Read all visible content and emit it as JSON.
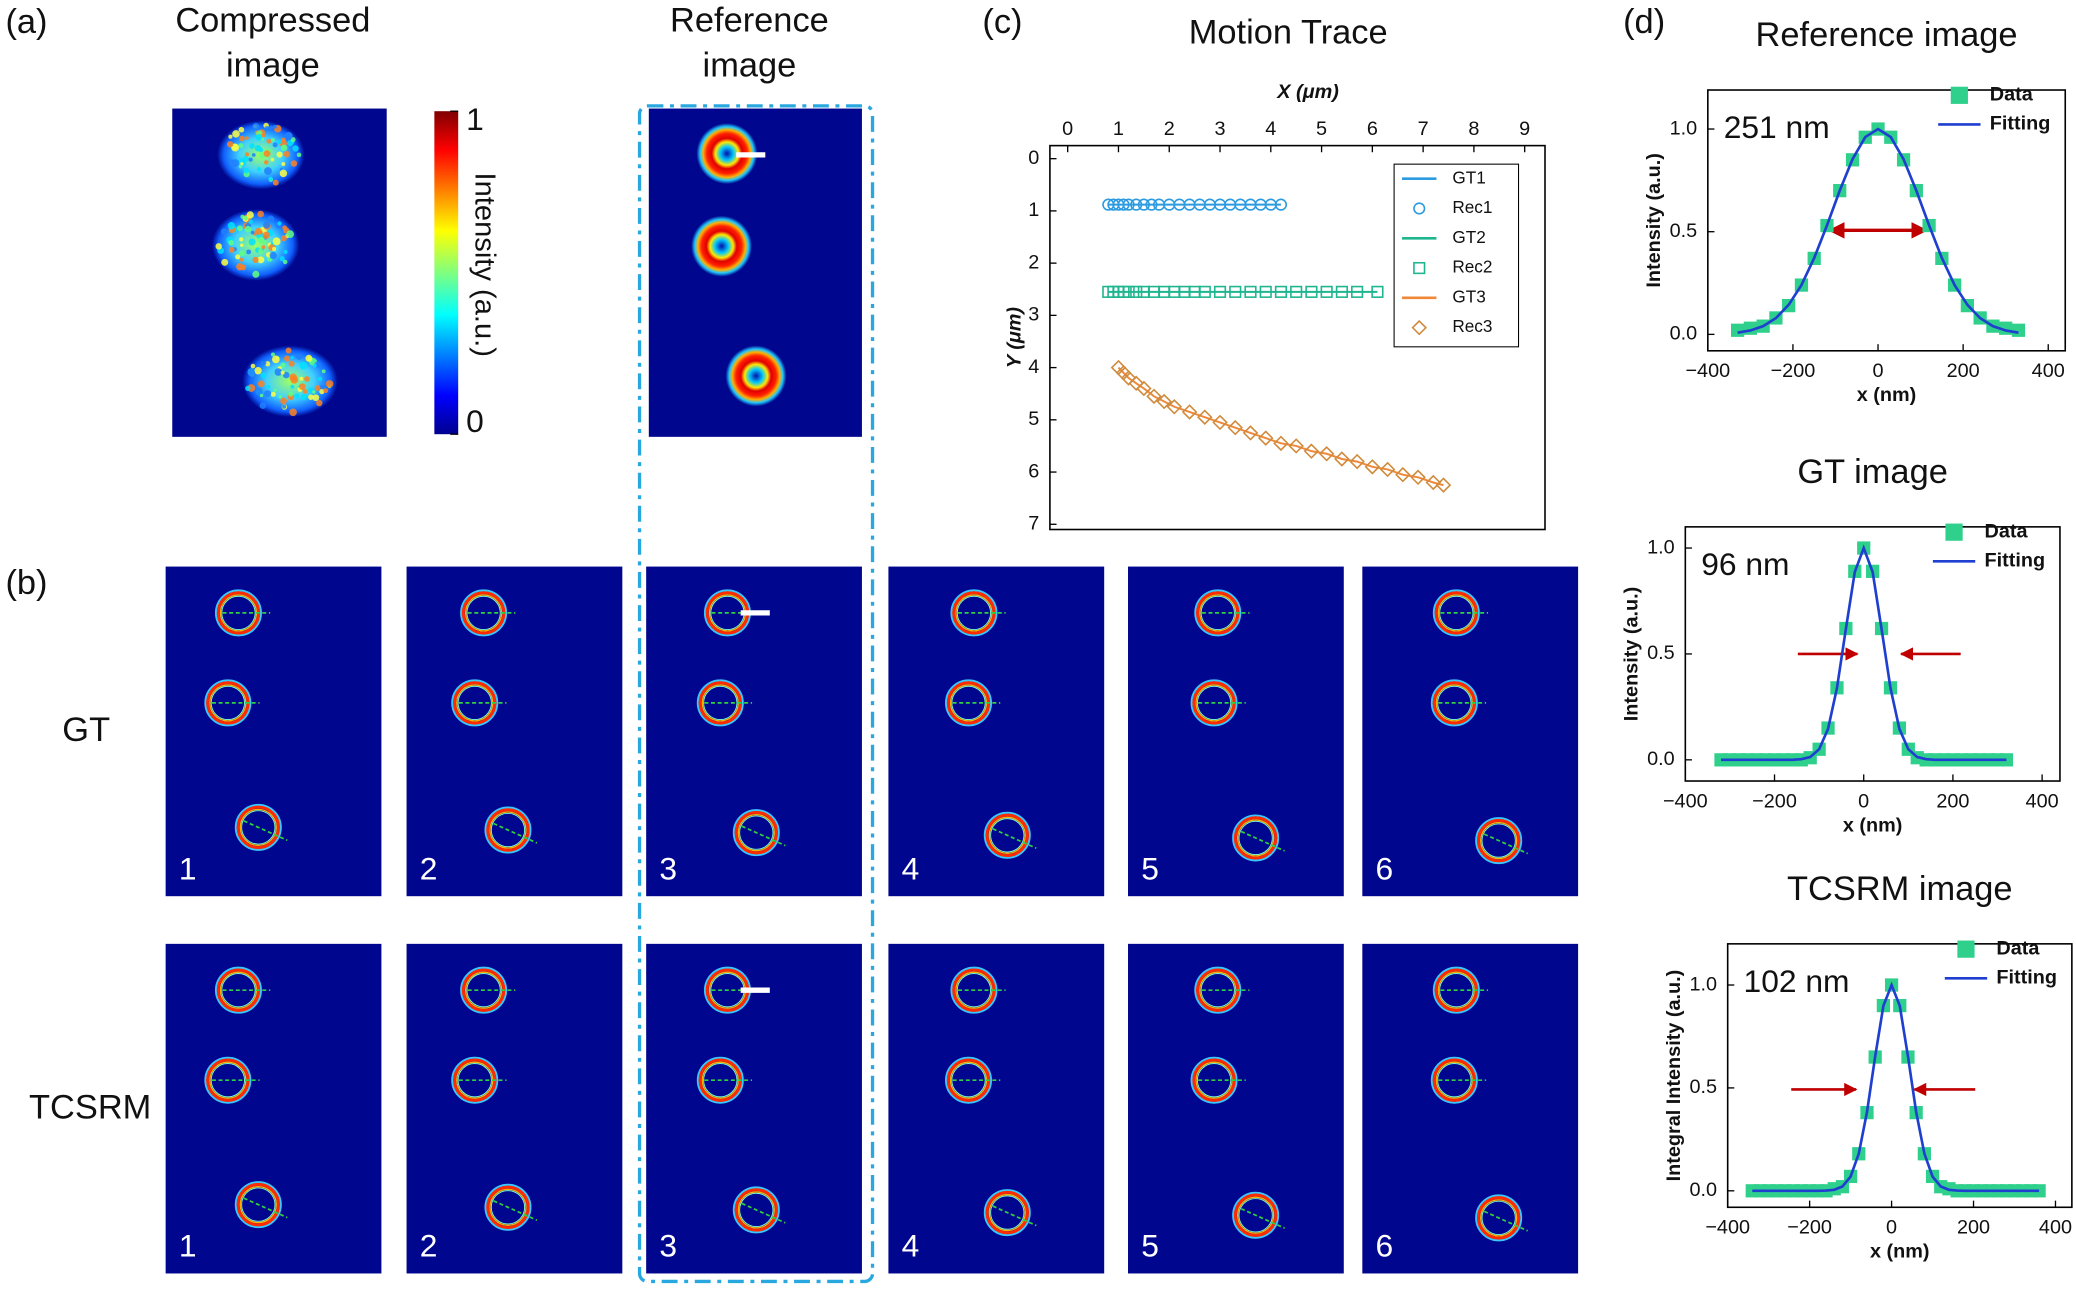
{
  "panel_labels": [
    "(a)",
    "(b)",
    "(c)",
    "(d)"
  ],
  "compressed_image": {
    "title_lines": [
      "Compressed",
      "image"
    ]
  },
  "reference_image": {
    "title_lines": [
      "Reference",
      "image"
    ]
  },
  "colorbar": {
    "label": "Intensity (a.u.)",
    "clim": [
      0,
      1
    ],
    "ticks": [
      0,
      1
    ]
  },
  "sequence": {
    "rows": [
      {
        "label": "GT",
        "frames": [
          "1",
          "2",
          "3",
          "4",
          "5",
          "6"
        ]
      },
      {
        "label": "TCSRM",
        "frames": [
          "1",
          "2",
          "3",
          "4",
          "5",
          "6"
        ]
      }
    ]
  },
  "chart_data": [
    {
      "type": "scatter",
      "title": "Motion Trace",
      "xlabel": "X (μm)",
      "ylabel": "Y (μm)",
      "xlim": [
        -0.35,
        9.4
      ],
      "ylim": [
        -0.25,
        7.1
      ],
      "y_inverted": true,
      "x_axis_top": true,
      "xticks": [
        0,
        1,
        2,
        3,
        4,
        5,
        6,
        7,
        8,
        9
      ],
      "yticks": [
        0,
        1,
        2,
        3,
        4,
        5,
        6,
        7
      ],
      "grid": false,
      "legend": "upper right",
      "series": [
        {
          "name": "GT1",
          "color": "#2d9be0",
          "marker": "line",
          "x": [
            0.8,
            4.2
          ],
          "values": [
            0.88,
            0.88
          ]
        },
        {
          "name": "Rec1",
          "color": "#2d9be0",
          "marker": "circle",
          "x": [
            0.8,
            0.9,
            1.0,
            1.1,
            1.2,
            1.35,
            1.5,
            1.65,
            1.8,
            2.0,
            2.2,
            2.4,
            2.6,
            2.8,
            3.0,
            3.2,
            3.4,
            3.6,
            3.8,
            4.0,
            4.2
          ],
          "values": [
            0.88,
            0.88,
            0.88,
            0.88,
            0.88,
            0.88,
            0.88,
            0.88,
            0.88,
            0.88,
            0.88,
            0.88,
            0.88,
            0.88,
            0.88,
            0.88,
            0.88,
            0.88,
            0.88,
            0.88,
            0.88
          ]
        },
        {
          "name": "GT2",
          "color": "#1fb58f",
          "marker": "line",
          "x": [
            0.8,
            6.1
          ],
          "values": [
            2.55,
            2.55
          ]
        },
        {
          "name": "Rec2",
          "color": "#1fb58f",
          "marker": "open-square",
          "x": [
            0.8,
            0.9,
            1.0,
            1.1,
            1.2,
            1.35,
            1.5,
            1.7,
            1.9,
            2.1,
            2.3,
            2.5,
            2.7,
            3.0,
            3.3,
            3.6,
            3.9,
            4.2,
            4.5,
            4.8,
            5.1,
            5.4,
            5.7,
            6.1
          ],
          "values": [
            2.55,
            2.55,
            2.55,
            2.55,
            2.55,
            2.55,
            2.55,
            2.55,
            2.55,
            2.55,
            2.55,
            2.55,
            2.55,
            2.55,
            2.55,
            2.55,
            2.55,
            2.55,
            2.55,
            2.55,
            2.55,
            2.55,
            2.55,
            2.55
          ]
        },
        {
          "name": "GT3",
          "color": "#f0883a",
          "marker": "line",
          "x": [
            1.0,
            1.1,
            1.2,
            1.35,
            1.5,
            1.7,
            1.9,
            2.1,
            2.4,
            2.7,
            3.0,
            3.3,
            3.6,
            3.9,
            4.2,
            4.5,
            4.8,
            5.1,
            5.4,
            5.7,
            6.0,
            6.3,
            6.6,
            6.9,
            7.2,
            7.4
          ],
          "values": [
            4.0,
            4.1,
            4.2,
            4.3,
            4.4,
            4.55,
            4.65,
            4.75,
            4.85,
            4.95,
            5.05,
            5.15,
            5.25,
            5.35,
            5.45,
            5.5,
            5.6,
            5.65,
            5.75,
            5.8,
            5.9,
            5.95,
            6.05,
            6.1,
            6.2,
            6.25
          ]
        },
        {
          "name": "Rec3",
          "color": "#d08a3c",
          "marker": "diamond",
          "x": [
            1.0,
            1.1,
            1.2,
            1.35,
            1.5,
            1.7,
            1.9,
            2.1,
            2.4,
            2.7,
            3.0,
            3.3,
            3.6,
            3.9,
            4.2,
            4.5,
            4.8,
            5.1,
            5.4,
            5.7,
            6.0,
            6.3,
            6.6,
            6.9,
            7.2,
            7.4
          ],
          "values": [
            4.0,
            4.1,
            4.2,
            4.3,
            4.4,
            4.55,
            4.65,
            4.75,
            4.85,
            4.95,
            5.05,
            5.15,
            5.25,
            5.35,
            5.45,
            5.5,
            5.6,
            5.65,
            5.75,
            5.8,
            5.9,
            5.95,
            6.05,
            6.1,
            6.2,
            6.25
          ]
        }
      ]
    },
    {
      "type": "line",
      "title": "Reference image",
      "annotation": "251 nm",
      "xlabel": "x (nm)",
      "ylabel": "Intensity (a.u.)",
      "xlim": [
        -400,
        440
      ],
      "ylim": [
        -0.08,
        1.19
      ],
      "xticks": [
        {
          "value": -400,
          "label": "−400"
        },
        {
          "value": -200,
          "label": "−200"
        },
        0,
        200,
        400
      ],
      "yticks": [
        {
          "value": 0,
          "label": "0.0"
        },
        0.5,
        {
          "value": 1,
          "label": "1.0"
        }
      ],
      "legend": "upper right",
      "x": [
        -330,
        -300,
        -270,
        -240,
        -210,
        -180,
        -150,
        -120,
        -90,
        -60,
        -30,
        0,
        30,
        60,
        90,
        120,
        150,
        180,
        210,
        240,
        270,
        300,
        330
      ],
      "series": [
        {
          "name": "Data",
          "color": "#2fd08c",
          "marker": "square",
          "values": [
            0.02,
            0.03,
            0.04,
            0.08,
            0.14,
            0.24,
            0.37,
            0.53,
            0.7,
            0.85,
            0.96,
            1.0,
            0.96,
            0.85,
            0.7,
            0.53,
            0.37,
            0.24,
            0.14,
            0.08,
            0.04,
            0.03,
            0.02
          ]
        },
        {
          "name": "Fitting",
          "color": "#1f3fd0",
          "marker": "line",
          "values": [
            0.008,
            0.019,
            0.04,
            0.079,
            0.144,
            0.24,
            0.372,
            0.531,
            0.7,
            0.853,
            0.961,
            1.0,
            0.961,
            0.853,
            0.7,
            0.531,
            0.372,
            0.24,
            0.144,
            0.079,
            0.04,
            0.019,
            0.008
          ]
        }
      ]
    },
    {
      "type": "line",
      "title": "GT image",
      "annotation": "96 nm",
      "xlabel": "x (nm)",
      "ylabel": "Intensity (a.u.)",
      "xlim": [
        -400,
        440
      ],
      "ylim": [
        -0.1,
        1.1
      ],
      "xticks": [
        {
          "value": -400,
          "label": "−400"
        },
        {
          "value": -200,
          "label": "−200"
        },
        0,
        200,
        400
      ],
      "yticks": [
        {
          "value": 0,
          "label": "0.0"
        },
        0.5,
        {
          "value": 1,
          "label": "1.0"
        }
      ],
      "legend": "upper right",
      "x": [
        -320,
        -300,
        -280,
        -260,
        -240,
        -220,
        -200,
        -180,
        -160,
        -140,
        -120,
        -100,
        -80,
        -60,
        -40,
        -20,
        0,
        20,
        40,
        60,
        80,
        100,
        120,
        140,
        160,
        180,
        200,
        220,
        240,
        260,
        280,
        300,
        320
      ],
      "series": [
        {
          "name": "Data",
          "color": "#2fd08c",
          "marker": "square",
          "values": [
            0,
            0,
            0,
            0,
            0,
            0,
            0,
            0,
            0,
            0,
            0.01,
            0.05,
            0.15,
            0.34,
            0.62,
            0.89,
            1.0,
            0.89,
            0.62,
            0.34,
            0.15,
            0.05,
            0.01,
            0,
            0,
            0,
            0,
            0,
            0,
            0,
            0,
            0,
            0
          ]
        },
        {
          "name": "Fitting",
          "color": "#1f3fd0",
          "marker": "line",
          "values": [
            0,
            0,
            0,
            0,
            0,
            0,
            0,
            0,
            0,
            0.003,
            0.013,
            0.05,
            0.146,
            0.339,
            0.618,
            0.887,
            1.0,
            0.887,
            0.618,
            0.339,
            0.146,
            0.05,
            0.013,
            0.003,
            0,
            0,
            0,
            0,
            0,
            0,
            0,
            0,
            0
          ]
        }
      ]
    },
    {
      "type": "line",
      "title": "TCSRM image",
      "annotation": "102 nm",
      "xlabel": "x (nm)",
      "ylabel": "Integral Intensity (a.u.)",
      "xlim": [
        -400,
        440
      ],
      "ylim": [
        -0.08,
        1.2
      ],
      "xticks": [
        {
          "value": -400,
          "label": "−400"
        },
        {
          "value": -200,
          "label": "−200"
        },
        0,
        200,
        400
      ],
      "yticks": [
        {
          "value": 0,
          "label": "0.0"
        },
        0.5,
        {
          "value": 1,
          "label": "1.0"
        }
      ],
      "legend": "upper right",
      "x": [
        -340,
        -320,
        -300,
        -280,
        -260,
        -240,
        -220,
        -200,
        -180,
        -160,
        -140,
        -120,
        -100,
        -80,
        -60,
        -40,
        -20,
        0,
        20,
        40,
        60,
        80,
        100,
        120,
        140,
        160,
        180,
        200,
        220,
        240,
        260,
        280,
        300,
        320,
        340,
        360
      ],
      "series": [
        {
          "name": "Data",
          "color": "#2fd08c",
          "marker": "square",
          "values": [
            0,
            0,
            0,
            0,
            0,
            0,
            0,
            0,
            0,
            0,
            0.01,
            0.02,
            0.07,
            0.18,
            0.38,
            0.65,
            0.9,
            1.0,
            0.9,
            0.65,
            0.38,
            0.18,
            0.07,
            0.02,
            0.01,
            0,
            0,
            0,
            0,
            0,
            0,
            0,
            0,
            0,
            0,
            0
          ]
        },
        {
          "name": "Fitting",
          "color": "#1f3fd0",
          "marker": "line",
          "values": [
            0,
            0,
            0,
            0,
            0,
            0,
            0,
            0,
            0,
            0.001,
            0.005,
            0.021,
            0.069,
            0.181,
            0.383,
            0.653,
            0.899,
            1.0,
            0.899,
            0.653,
            0.383,
            0.181,
            0.069,
            0.021,
            0.005,
            0.001,
            0,
            0,
            0,
            0,
            0,
            0,
            0,
            0,
            0,
            0
          ]
        }
      ]
    }
  ]
}
